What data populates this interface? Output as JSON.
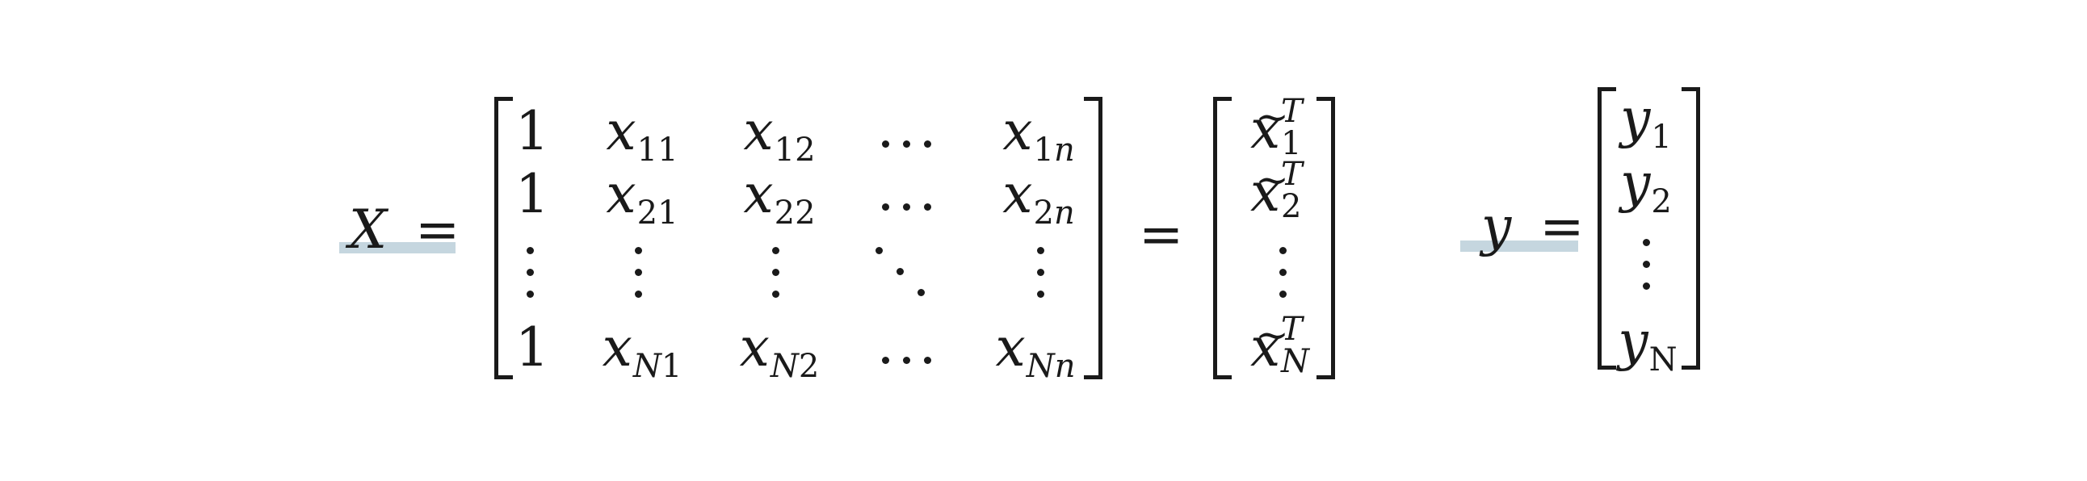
{
  "lhs_X": {
    "symbol": "X",
    "equals": "="
  },
  "matrix_X": {
    "rows": [
      [
        "1",
        "x",
        "x",
        "…",
        "x"
      ],
      [
        "1",
        "x",
        "x",
        "…",
        "x"
      ],
      [
        "⋮",
        "⋮",
        "⋮",
        "⋱",
        "⋮"
      ],
      [
        "1",
        "x",
        "x",
        "…",
        "x"
      ]
    ],
    "subscripts": [
      [
        "",
        "11",
        "12",
        "",
        "1n"
      ],
      [
        "",
        "21",
        "22",
        "",
        "2n"
      ],
      [
        "",
        "",
        "",
        "",
        ""
      ],
      [
        "",
        "N1",
        "N2",
        "",
        "Nn"
      ]
    ]
  },
  "middle_equals": "=",
  "matrix_xtilde": {
    "base": "x",
    "tilde": "~",
    "superscript": "T",
    "subscripts": [
      "1",
      "2",
      "N"
    ],
    "vdots": "⋮"
  },
  "lhs_y": {
    "symbol": "y",
    "equals": "="
  },
  "vector_y": {
    "base": "y",
    "subscripts": [
      "1",
      "2",
      "N"
    ],
    "vdots": "⋮"
  },
  "colors": {
    "highlight": "#c5d6df",
    "ink": "#1a1a1a"
  }
}
